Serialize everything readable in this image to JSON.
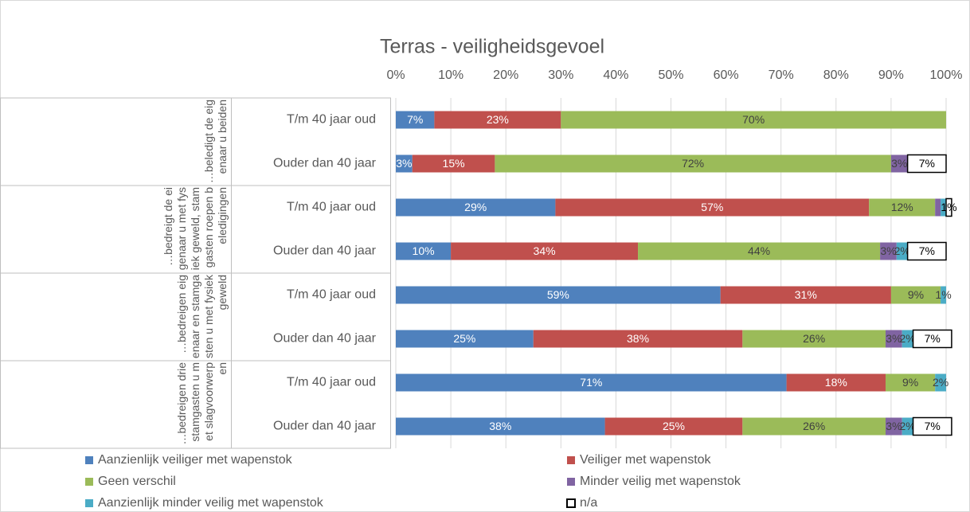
{
  "chart_data": {
    "type": "stacked-bar-horizontal",
    "title": "Terras - veiligheidsgevoel",
    "groups": [
      "…beledigt de eigenaar u beiden",
      "…bedreigt de eigenaar u met fysiek geweld, stamgasten roepen beledigingen",
      "…bedreigen eigenaar en stamgasten u met fysiek geweld",
      "…bedreigen drie stamgasten u met slagvoorwerpen"
    ],
    "categories": [
      "T/m 40 jaar oud",
      "Ouder dan 40 jaar",
      "T/m 40 jaar oud",
      "Ouder dan 40 jaar",
      "T/m 40 jaar oud",
      "Ouder dan 40 jaar",
      "T/m 40 jaar oud",
      "Ouder dan 40 jaar"
    ],
    "xlim": [
      0,
      100
    ],
    "xticks": [
      {
        "value": 0,
        "label": "0%"
      },
      {
        "value": 10,
        "label": "10%"
      },
      {
        "value": 20,
        "label": "20%"
      },
      {
        "value": 30,
        "label": "30%"
      },
      {
        "value": 40,
        "label": "40%"
      },
      {
        "value": 50,
        "label": "50%"
      },
      {
        "value": 60,
        "label": "60%"
      },
      {
        "value": 70,
        "label": "70%"
      },
      {
        "value": 80,
        "label": "80%"
      },
      {
        "value": 90,
        "label": "90%"
      },
      {
        "value": 100,
        "label": "100%"
      }
    ],
    "grid": true,
    "legend": "bottom",
    "series": [
      {
        "name": "Aanzienlijk veiliger met wapenstok",
        "color": "#4f81bd",
        "values": [
          7,
          3,
          29,
          10,
          59,
          25,
          71,
          38
        ],
        "value_labels": [
          "7%",
          "3%",
          "29%",
          "10%",
          "59%",
          "25%",
          "71%",
          "38%"
        ]
      },
      {
        "name": "Veiliger met wapenstok",
        "color": "#c0504d",
        "values": [
          23,
          15,
          57,
          34,
          31,
          38,
          18,
          25
        ],
        "value_labels": [
          "23%",
          "15%",
          "57%",
          "34%",
          "31%",
          "38%",
          "18%",
          "25%"
        ]
      },
      {
        "name": "Geen verschil",
        "color": "#9bbb59",
        "values": [
          70,
          72,
          12,
          44,
          9,
          26,
          9,
          26
        ],
        "value_labels": [
          "70%",
          "72%",
          "12%",
          "44%",
          "9%",
          "26%",
          "9%",
          "26%"
        ]
      },
      {
        "name": "Minder veilig met wapenstok",
        "color": "#8064a2",
        "values": [
          0,
          3,
          1,
          3,
          0,
          3,
          0,
          3
        ],
        "value_labels": [
          null,
          "3%",
          null,
          "3%",
          null,
          "3%",
          null,
          "3%"
        ]
      },
      {
        "name": "Aanzienlijk minder veilig met wapenstok",
        "color": "#4bacc6",
        "values": [
          0,
          0,
          1,
          2,
          1,
          2,
          2,
          2
        ],
        "value_labels": [
          null,
          null,
          null,
          "2%",
          "1%",
          "2%",
          "2%",
          "2%"
        ]
      },
      {
        "name": "n/a",
        "color": "#ffffff",
        "values": [
          0,
          7,
          1,
          7,
          0,
          7,
          0,
          7
        ],
        "value_labels": [
          null,
          "7%",
          "1%",
          "7%",
          null,
          "7%",
          null,
          "7%"
        ]
      }
    ]
  }
}
